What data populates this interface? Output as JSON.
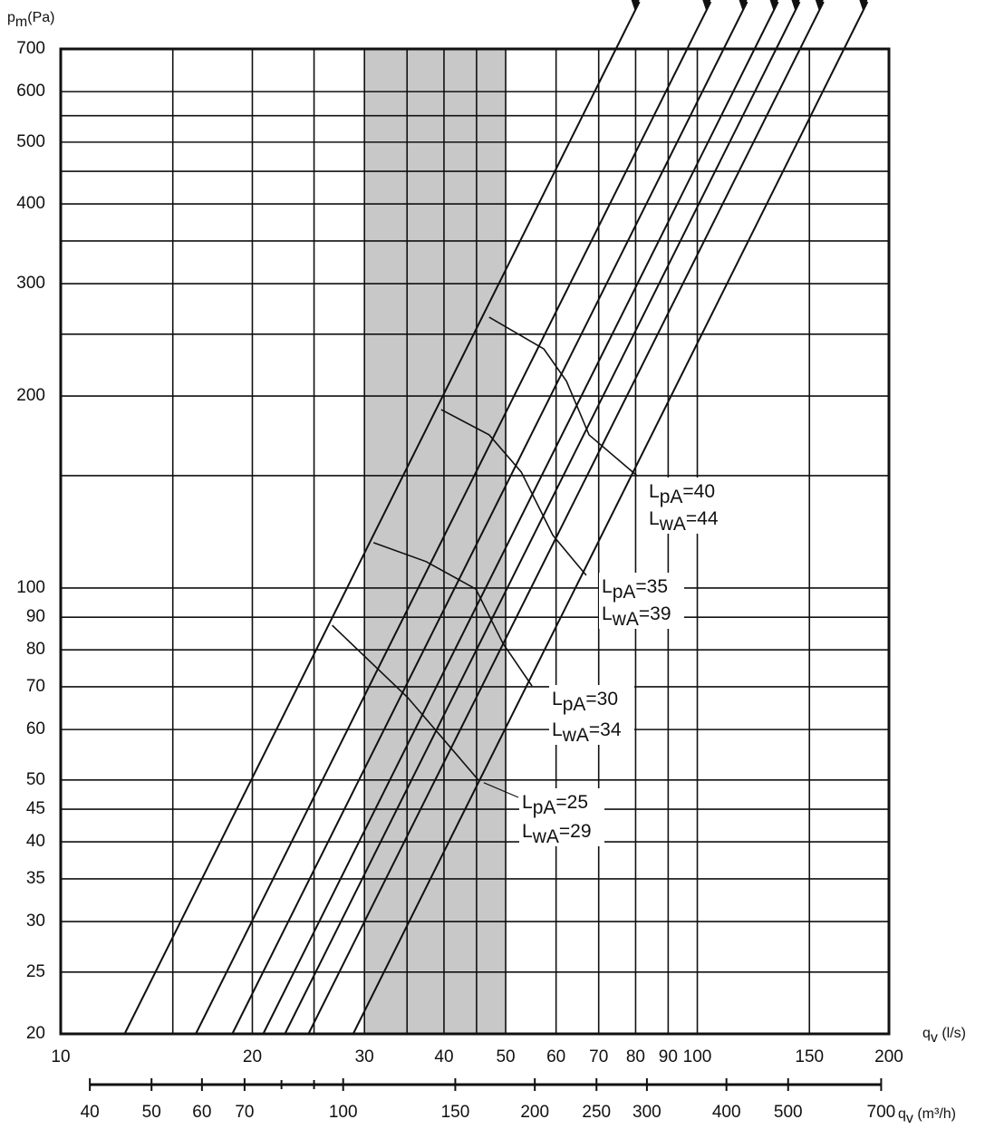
{
  "chart_data": {
    "type": "line",
    "ylabel": "pm(Pa)",
    "xlabel": "qv (l/s)",
    "x2label": "qv (m³/h)",
    "xscale": "log",
    "yscale": "log",
    "grid": true,
    "xlim": [
      10,
      200
    ],
    "xticks": [
      10,
      20,
      30,
      40,
      50,
      60,
      70,
      80,
      90,
      100,
      150,
      200
    ],
    "xminor_grid": [
      15,
      25,
      35,
      45
    ],
    "ylim": [
      20,
      700
    ],
    "yticks": [
      20,
      25,
      30,
      35,
      40,
      45,
      50,
      60,
      70,
      80,
      90,
      100,
      200,
      300,
      400,
      500,
      600,
      700
    ],
    "yminor_grid": [
      150,
      250,
      350,
      450,
      550
    ],
    "x2lim": [
      36,
      720
    ],
    "x2ticks": [
      40,
      50,
      60,
      70,
      100,
      150,
      200,
      250,
      300,
      400,
      500,
      700
    ],
    "x2minor_ticks": [
      80,
      90
    ],
    "shaded_x": [
      30,
      50
    ],
    "shade_color": "#c8c8c8",
    "color": "#111111",
    "system_curves": [
      {
        "x": [
          12.6,
          74.5
        ],
        "values": [
          20,
          700
        ]
      },
      {
        "x": [
          16.3,
          96.4
        ],
        "values": [
          20,
          700
        ]
      },
      {
        "x": [
          18.6,
          110
        ],
        "values": [
          20,
          700
        ]
      },
      {
        "x": [
          20.8,
          123
        ],
        "values": [
          20,
          700
        ]
      },
      {
        "x": [
          22.5,
          133
        ],
        "values": [
          20,
          700
        ]
      },
      {
        "x": [
          24.5,
          145
        ],
        "values": [
          20,
          700
        ]
      },
      {
        "x": [
          28.8,
          170
        ],
        "values": [
          20,
          700
        ]
      }
    ],
    "sound_curves": [
      {
        "labels": [
          "LpA=25",
          "LwA=29"
        ],
        "x": [
          26.7,
          35.1,
          45.3
        ],
        "values": [
          87.4,
          67.3,
          50
        ]
      },
      {
        "labels": [
          "LpA=30",
          "LwA=34"
        ],
        "x": [
          31.0,
          37.5,
          44.9,
          49.5,
          55.0
        ],
        "values": [
          117.8,
          110,
          99.6,
          81.9,
          70.2
        ]
      },
      {
        "labels": [
          "LpA=35",
          "LwA=39"
        ],
        "x": [
          39.6,
          47.1,
          52.9,
          59.3,
          66.9
        ],
        "values": [
          190.4,
          173.8,
          152,
          121,
          104.7
        ]
      },
      {
        "labels": [
          "LpA=40",
          "LwA=44"
        ],
        "x": [
          47.1,
          57.4,
          62.3,
          67.6,
          80.4
        ],
        "values": [
          265.8,
          237,
          211,
          173.8,
          150
        ]
      }
    ]
  }
}
